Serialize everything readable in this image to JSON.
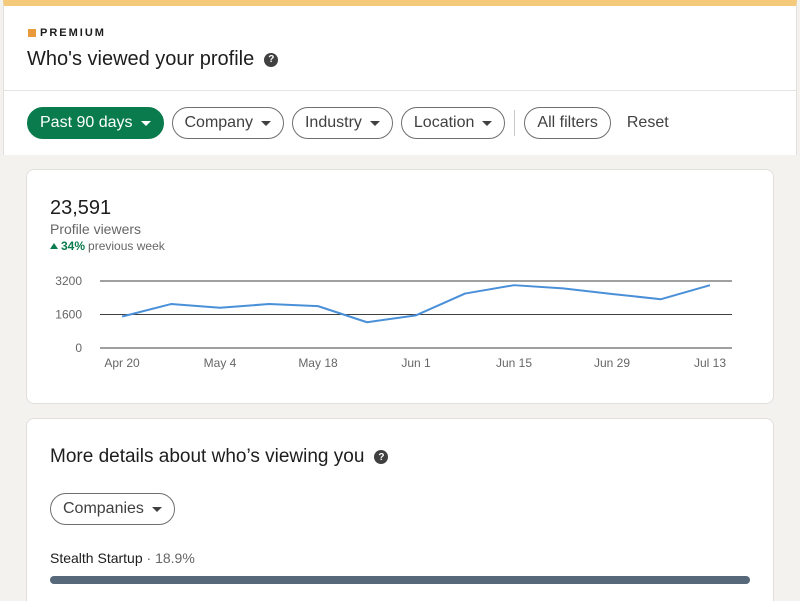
{
  "header": {
    "premium_label": "PREMIUM",
    "title": "Who's viewed your profile",
    "help_icon": "?"
  },
  "filters": {
    "period": "Past 90 days",
    "company": "Company",
    "industry": "Industry",
    "location": "Location",
    "all_filters": "All filters",
    "reset": "Reset"
  },
  "stats": {
    "total": "23,591",
    "label": "Profile viewers",
    "change": "34%",
    "change_suffix": "previous week"
  },
  "chart_data": {
    "type": "line",
    "x": [
      "Apr 20",
      "Apr 27",
      "May 4",
      "May 11",
      "May 18",
      "May 25",
      "Jun 1",
      "Jun 8",
      "Jun 15",
      "Jun 22",
      "Jun 29",
      "Jul 6",
      "Jul 13"
    ],
    "xticks": [
      "Apr 20",
      "May 4",
      "May 18",
      "Jun 1",
      "Jun 15",
      "Jun 29",
      "Jul 13"
    ],
    "series": [
      {
        "values": [
          1500,
          2100,
          1920,
          2100,
          2000,
          1230,
          1560,
          2600,
          3000,
          2850,
          2580,
          2330,
          3000
        ]
      }
    ],
    "yticks": [
      0,
      1600,
      3200
    ],
    "ylim": [
      0,
      3200
    ],
    "grid": true,
    "line_color": "#4a90d9"
  },
  "details": {
    "title": "More details about who’s viewing you",
    "dropdown": "Companies",
    "rows": [
      {
        "name": "Stealth Startup",
        "separator": " · ",
        "percent": "18.9%",
        "fraction": 1.0
      }
    ]
  },
  "colors": {
    "accent": "#0a7b4d",
    "premium_bar": "#f5c97a",
    "bar": "#56687a"
  }
}
